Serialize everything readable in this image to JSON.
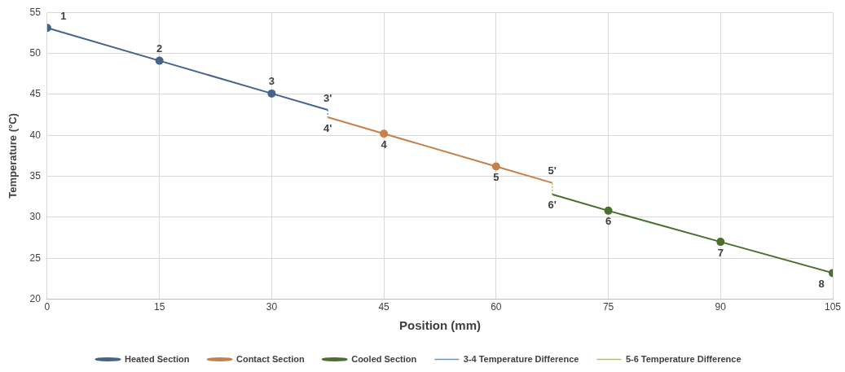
{
  "chart_data": {
    "type": "line",
    "xlabel": "Position (mm)",
    "ylabel": "Temperature (°C)",
    "xlim": [
      0,
      105
    ],
    "xticks": [
      0,
      15,
      30,
      45,
      60,
      75,
      90,
      105
    ],
    "ylim": [
      20,
      55
    ],
    "yticks": [
      20,
      25,
      30,
      35,
      40,
      45,
      50,
      55
    ],
    "grid": true,
    "legend": "bottom",
    "marker": "circle",
    "series": [
      {
        "name": "Heated Section",
        "color": "#44648a",
        "x": [
          0,
          15,
          30,
          37.5
        ],
        "values": [
          53.1,
          49.1,
          45.1,
          43.1
        ]
      },
      {
        "name": "Contact Section",
        "color": "#c8804a",
        "x": [
          37.5,
          45,
          60,
          67.5
        ],
        "values": [
          42.2,
          40.2,
          36.2,
          34.2
        ]
      },
      {
        "name": "Cooled Section",
        "color": "#4a6f30",
        "x": [
          67.5,
          75,
          90,
          105
        ],
        "values": [
          32.8,
          30.8,
          27.0,
          23.2
        ]
      },
      {
        "name": "3-4 Temperature Difference",
        "color": "#5b9bd5",
        "x": [
          37.5,
          37.5
        ],
        "values": [
          43.1,
          42.2
        ],
        "line_style": "dotted",
        "marker": "none"
      },
      {
        "name": "5-6 Temperature Difference",
        "color": "#a9c94a",
        "x": [
          67.5,
          67.5
        ],
        "values": [
          34.2,
          32.8
        ],
        "line_style": "dotted",
        "marker": "none"
      }
    ],
    "annotations": [
      {
        "text": "1",
        "x": 0,
        "y": 53.1
      },
      {
        "text": "2",
        "x": 15,
        "y": 49.1
      },
      {
        "text": "3",
        "x": 30,
        "y": 45.1
      },
      {
        "text": "3'",
        "x": 37.5,
        "y": 43.1
      },
      {
        "text": "4'",
        "x": 37.5,
        "y": 42.2
      },
      {
        "text": "4",
        "x": 45,
        "y": 40.2
      },
      {
        "text": "5",
        "x": 60,
        "y": 36.2
      },
      {
        "text": "5'",
        "x": 67.5,
        "y": 34.2
      },
      {
        "text": "6'",
        "x": 67.5,
        "y": 32.8
      },
      {
        "text": "6",
        "x": 75,
        "y": 30.8
      },
      {
        "text": "7",
        "x": 90,
        "y": 27.0
      },
      {
        "text": "8",
        "x": 105,
        "y": 23.2
      }
    ]
  }
}
